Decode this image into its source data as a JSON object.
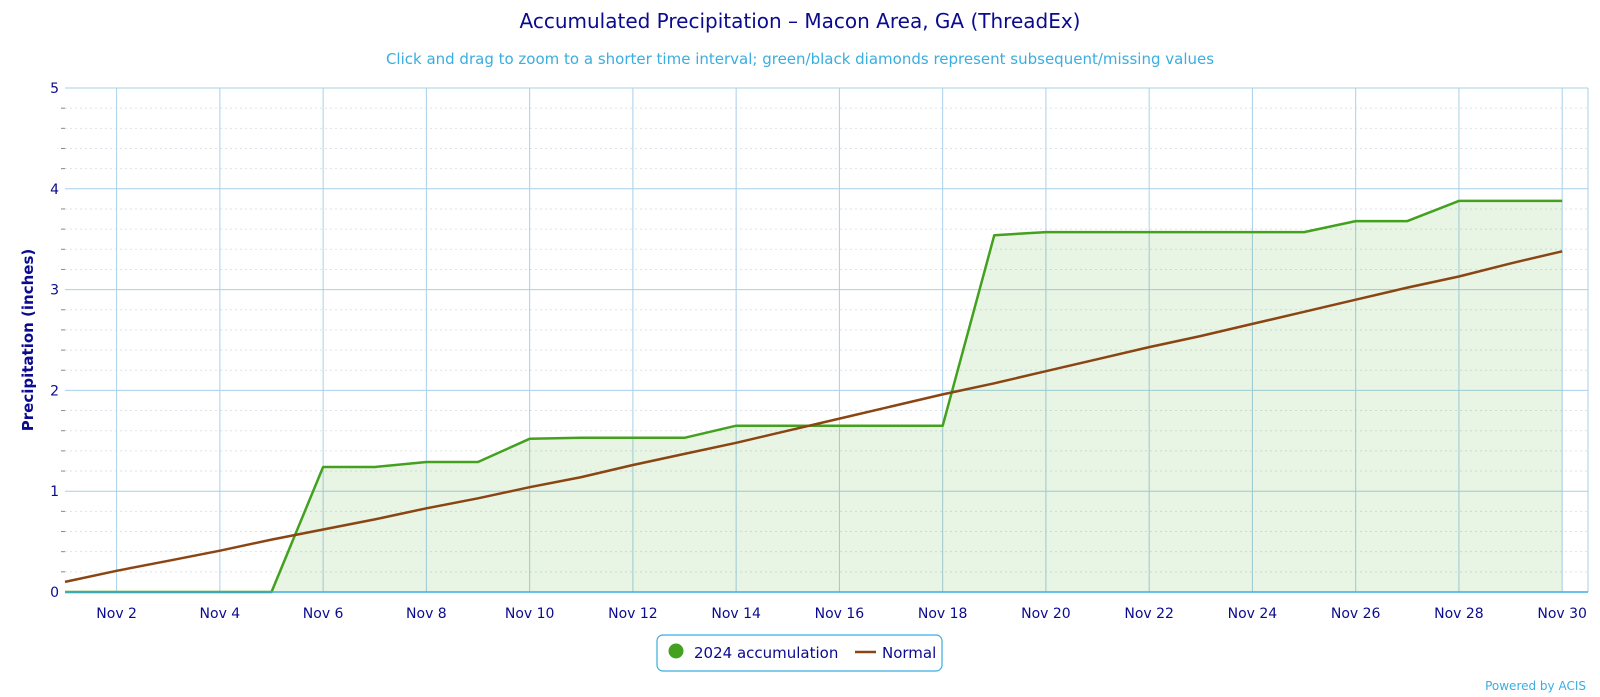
{
  "chart_data": {
    "type": "area",
    "title": "Accumulated Precipitation – Macon Area, GA (ThreadEx)",
    "subtitle": "Click and drag to zoom to a shorter time interval; green/black diamonds represent subsequent/missing values",
    "xlabel": "",
    "ylabel": "Precipitation (inches)",
    "ylim": [
      0,
      5
    ],
    "yticks": [
      "0",
      "1",
      "2",
      "3",
      "4",
      "5"
    ],
    "xticks": [
      "Nov 2",
      "Nov 4",
      "Nov 6",
      "Nov 8",
      "Nov 10",
      "Nov 12",
      "Nov 14",
      "Nov 16",
      "Nov 18",
      "Nov 20",
      "Nov 22",
      "Nov 24",
      "Nov 26",
      "Nov 28",
      "Nov 30"
    ],
    "grid": true,
    "legend_position": "bottom-center",
    "x": [
      1,
      2,
      3,
      4,
      5,
      6,
      7,
      8,
      9,
      10,
      11,
      12,
      13,
      14,
      15,
      16,
      17,
      18,
      19,
      20,
      21,
      22,
      23,
      24,
      25,
      26,
      27,
      28,
      29,
      30
    ],
    "series": [
      {
        "name": "2024 accumulation",
        "color": "#44a11f",
        "type": "area",
        "values": [
          0,
          0,
          0,
          0,
          0,
          1.24,
          1.24,
          1.29,
          1.29,
          1.52,
          1.53,
          1.53,
          1.53,
          1.65,
          1.65,
          1.65,
          1.65,
          1.65,
          3.54,
          3.57,
          3.57,
          3.57,
          3.57,
          3.57,
          3.57,
          3.68,
          3.68,
          3.88,
          3.88,
          3.88
        ]
      },
      {
        "name": "Normal",
        "color": "#8b4513",
        "type": "line",
        "values": [
          0.1,
          0.21,
          0.31,
          0.41,
          0.52,
          0.62,
          0.72,
          0.83,
          0.93,
          1.04,
          1.14,
          1.26,
          1.37,
          1.48,
          1.6,
          1.72,
          1.84,
          1.96,
          2.07,
          2.19,
          2.31,
          2.43,
          2.54,
          2.66,
          2.78,
          2.9,
          3.02,
          3.13,
          3.26,
          3.38
        ]
      }
    ]
  },
  "credit": "Powered by ACIS"
}
